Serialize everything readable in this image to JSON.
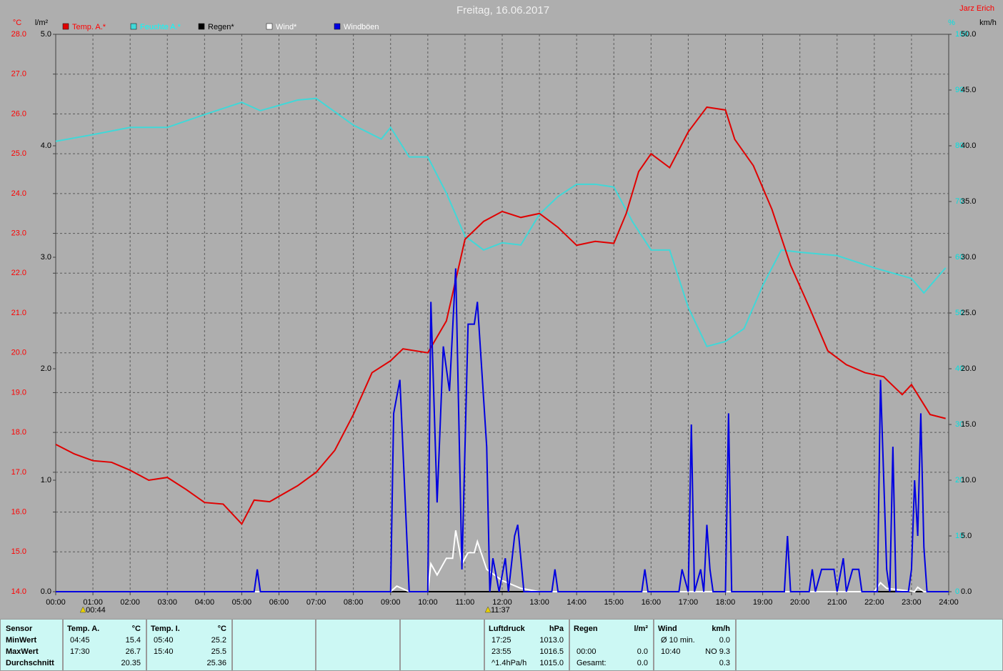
{
  "chart_data": {
    "type": "line",
    "title": "Freitag, 16.06.2017",
    "author": "Jarz Erich",
    "xlim": [
      0,
      24
    ],
    "xticks": [
      {
        "value": 0,
        "label": "00:00"
      },
      {
        "value": 1,
        "label": "01:00"
      },
      {
        "value": 2,
        "label": "02:00"
      },
      {
        "value": 3,
        "label": "03:00"
      },
      {
        "value": 4,
        "label": "04:00"
      },
      {
        "value": 5,
        "label": "05:00"
      },
      {
        "value": 6,
        "label": "06:00"
      },
      {
        "value": 7,
        "label": "07:00"
      },
      {
        "value": 8,
        "label": "08:00"
      },
      {
        "value": 9,
        "label": "09:00"
      },
      {
        "value": 10,
        "label": "10:00"
      },
      {
        "value": 11,
        "label": "11:00"
      },
      {
        "value": 12,
        "label": "12:00"
      },
      {
        "value": 13,
        "label": "13:00"
      },
      {
        "value": 14,
        "label": "14:00"
      },
      {
        "value": 15,
        "label": "15:00"
      },
      {
        "value": 16,
        "label": "16:00"
      },
      {
        "value": 17,
        "label": "17:00"
      },
      {
        "value": 18,
        "label": "18:00"
      },
      {
        "value": 19,
        "label": "19:00"
      },
      {
        "value": 20,
        "label": "20:00"
      },
      {
        "value": 21,
        "label": "21:00"
      },
      {
        "value": 22,
        "label": "22:00"
      },
      {
        "value": 23,
        "label": "23:00"
      },
      {
        "value": 24,
        "label": "24:00"
      }
    ],
    "grid": true,
    "axes": [
      {
        "label": "°C",
        "color": "#ff0000",
        "lim": [
          14,
          28
        ],
        "ticks": [
          {
            "value": 14,
            "label": "14.0"
          },
          {
            "value": 15,
            "label": "15.0"
          },
          {
            "value": 16,
            "label": "16.0"
          },
          {
            "value": 17,
            "label": "17.0"
          },
          {
            "value": 18,
            "label": "18.0"
          },
          {
            "value": 19,
            "label": "19.0"
          },
          {
            "value": 20,
            "label": "20.0"
          },
          {
            "value": 21,
            "label": "21.0"
          },
          {
            "value": 22,
            "label": "22.0"
          },
          {
            "value": 23,
            "label": "23.0"
          },
          {
            "value": 24,
            "label": "24.0"
          },
          {
            "value": 25,
            "label": "25.0"
          },
          {
            "value": 26,
            "label": "26.0"
          },
          {
            "value": 27,
            "label": "27.0"
          },
          {
            "value": 28,
            "label": "28.0"
          }
        ]
      },
      {
        "label": "l/m²",
        "color": "#000000",
        "lim": [
          0,
          5
        ],
        "ticks": [
          {
            "value": 0,
            "label": "0.0"
          },
          {
            "value": 1,
            "label": "1.0"
          },
          {
            "value": 2,
            "label": "2.0"
          },
          {
            "value": 3,
            "label": "3.0"
          },
          {
            "value": 4,
            "label": "4.0"
          },
          {
            "value": 5,
            "label": "5.0"
          }
        ]
      },
      {
        "label": "%",
        "color": "#00e0e0",
        "lim": [
          0,
          100
        ],
        "ticks": [
          0,
          10,
          20,
          30,
          40,
          50,
          60,
          70,
          80,
          90,
          100
        ]
      },
      {
        "label": "km/h",
        "color": "#000000",
        "lim": [
          0,
          50
        ],
        "ticks": [
          {
            "value": 0,
            "label": "0.0"
          },
          {
            "value": 5,
            "label": "5.0"
          },
          {
            "value": 10,
            "label": "10.0"
          },
          {
            "value": 15,
            "label": "15.0"
          },
          {
            "value": 20,
            "label": "20.0"
          },
          {
            "value": 25,
            "label": "25.0"
          },
          {
            "value": 30,
            "label": "30.0"
          },
          {
            "value": 35,
            "label": "35.0"
          },
          {
            "value": 40,
            "label": "40.0"
          },
          {
            "value": 45,
            "label": "45.0"
          },
          {
            "value": 50,
            "label": "50.0"
          }
        ]
      }
    ],
    "series": [
      {
        "name": "Temp. A.*",
        "color": "#e00000",
        "label_color": "#ff0000",
        "axis": 0,
        "x": [
          0,
          0.5,
          1,
          1.5,
          2,
          2.5,
          3,
          3.5,
          4,
          4.5,
          5,
          5.333,
          5.75,
          6.5,
          7,
          7.5,
          8,
          8.5,
          9,
          9.333,
          10,
          10.5,
          11,
          11.5,
          12,
          12.5,
          13,
          13.5,
          14,
          14.5,
          15,
          15.333,
          15.667,
          16,
          16.5,
          17,
          17.5,
          18,
          18.25,
          18.75,
          19.25,
          19.75,
          20.25,
          20.75,
          21.25,
          21.75,
          22.25,
          22.75,
          23,
          23.5,
          23.917
        ],
        "values": [
          17.7,
          17.46,
          17.29,
          17.25,
          17.05,
          16.8,
          16.87,
          16.57,
          16.24,
          16.2,
          15.7,
          16.3,
          16.26,
          16.66,
          17.0,
          17.55,
          18.45,
          19.5,
          19.8,
          20.1,
          20.0,
          20.8,
          22.85,
          23.3,
          23.55,
          23.4,
          23.5,
          23.15,
          22.7,
          22.8,
          22.75,
          23.5,
          24.55,
          25.0,
          24.65,
          25.55,
          26.17,
          26.1,
          25.36,
          24.7,
          23.6,
          22.2,
          21.15,
          20.05,
          19.7,
          19.5,
          19.4,
          18.95,
          19.2,
          18.45,
          18.35
        ]
      },
      {
        "name": "Feuchte A.*",
        "color": "#40d8d8",
        "label_color": "#00ffff",
        "axis": 2,
        "x": [
          0,
          1,
          2,
          3,
          4,
          5,
          5.5,
          6.5,
          7,
          8,
          8.75,
          9,
          9.5,
          10,
          10.5,
          11,
          11.5,
          12,
          12.5,
          13,
          13.5,
          14,
          14.5,
          15,
          15.5,
          16,
          16.5,
          17,
          17.5,
          18,
          18.5,
          19,
          19.5,
          20,
          21,
          22,
          23,
          23.333,
          23.917
        ],
        "values": [
          80.8,
          82,
          83.3,
          83.3,
          85.6,
          87.8,
          86.3,
          88.2,
          88.5,
          83.7,
          81.2,
          83.3,
          78,
          78,
          71.5,
          63.8,
          61.3,
          62.6,
          62.2,
          67.7,
          70.9,
          73.1,
          73.1,
          72.6,
          66.4,
          61.3,
          61.3,
          51,
          44,
          44.9,
          47.2,
          54.9,
          61.3,
          60.9,
          60.3,
          58.1,
          56.2,
          53.6,
          58.1
        ]
      },
      {
        "name": "Regen*",
        "color": "#000000",
        "label_color": "#000000",
        "axis": 1,
        "x": [
          0,
          24
        ],
        "values": [
          0,
          0
        ]
      },
      {
        "name": "Wind*",
        "color": "#ffffff",
        "label_color": "#ffffff",
        "axis": 3,
        "x": [
          0,
          9,
          9.167,
          9.5,
          10,
          10.083,
          10.25,
          10.5,
          10.667,
          10.75,
          10.917,
          11.083,
          11.25,
          11.333,
          11.583,
          12,
          12.5,
          13,
          22,
          22.167,
          22.333,
          23.083,
          23.167,
          23.333,
          24
        ],
        "values": [
          0,
          0,
          0.5,
          0,
          0,
          2.5,
          1.5,
          3,
          3,
          5.5,
          2.5,
          3.5,
          3.5,
          4.5,
          2,
          1,
          0.3,
          0,
          0,
          0.8,
          0.3,
          0,
          0.4,
          0,
          0
        ]
      },
      {
        "name": "Windböen",
        "color": "#0000e0",
        "label_color": "#ffffff",
        "axis": 3,
        "x": [
          0,
          5.333,
          5.417,
          5.5,
          9,
          9.083,
          9.25,
          9.5,
          10,
          10.083,
          10.25,
          10.417,
          10.583,
          10.75,
          10.917,
          11.083,
          11.25,
          11.333,
          11.583,
          11.667,
          11.75,
          11.917,
          12.083,
          12.167,
          12.333,
          12.417,
          12.583,
          13.333,
          13.417,
          13.5,
          15.75,
          15.833,
          15.917,
          16.75,
          16.833,
          17,
          17.083,
          17.167,
          17.333,
          17.417,
          17.5,
          17.583,
          17.667,
          18,
          18.083,
          18.167,
          19.583,
          19.667,
          19.75,
          20.25,
          20.333,
          20.417,
          20.583,
          20.917,
          21,
          21.167,
          21.25,
          21.417,
          21.583,
          21.667,
          22.083,
          22.167,
          22.333,
          22.417,
          22.5,
          22.583,
          22.917,
          23,
          23.083,
          23.167,
          23.25,
          23.333,
          23.417,
          24
        ],
        "values": [
          0,
          0,
          2,
          0,
          0,
          16,
          19,
          0,
          0,
          26,
          8,
          22,
          18,
          29,
          2,
          24,
          24,
          26,
          13,
          0,
          3,
          0,
          3,
          0,
          5,
          6,
          0,
          0,
          2,
          0,
          0,
          2,
          0,
          0,
          2,
          0,
          15,
          0,
          2,
          0,
          6,
          2,
          0,
          0,
          16,
          0,
          0,
          5,
          0,
          0,
          2,
          0,
          2,
          2,
          0,
          3,
          0,
          2,
          2,
          0,
          0,
          19,
          2,
          0,
          13,
          0,
          0,
          2,
          10,
          5,
          16,
          4,
          0,
          0
        ]
      }
    ],
    "annotations": [
      {
        "x": 0.733,
        "label": "00:44"
      },
      {
        "x": 11.617,
        "label": "11:37"
      }
    ]
  },
  "summary": {
    "labels": [
      "Sensor",
      "MinWert",
      "MaxWert",
      "Durchschnitt"
    ],
    "panels": [
      {
        "title": "Temp. A.",
        "unit": "°C",
        "rows": [
          {
            "left": "04:45",
            "right": "15.4"
          },
          {
            "left": "17:30",
            "right": "26.7"
          },
          {
            "right": "20.35"
          }
        ]
      },
      {
        "title": "Temp. I.",
        "unit": "°C",
        "rows": [
          {
            "left": "05:40",
            "right": "25.2"
          },
          {
            "left": "15:40",
            "right": "25.5"
          },
          {
            "right": "25.36"
          }
        ]
      },
      {
        "title": "Luftdruck",
        "unit": "hPa",
        "rows": [
          {
            "left": "17:25",
            "right": "1013.0"
          },
          {
            "left": "23:55",
            "right": "1016.5"
          },
          {
            "left": "^1.4hPa/h",
            "right": "1015.0"
          }
        ]
      },
      {
        "title": "Regen",
        "unit": "l/m²",
        "rows": [
          null,
          {
            "left": "00:00",
            "right": "0.0"
          },
          {
            "left": "Gesamt:",
            "right": "0.0"
          }
        ]
      },
      {
        "title": "Wind",
        "unit": "km/h",
        "rows": [
          {
            "left": "Ø 10 min.",
            "right": "0.0"
          },
          {
            "left": "10:40",
            "right": "NO 9.3"
          },
          {
            "right": "0.3"
          }
        ]
      }
    ]
  }
}
